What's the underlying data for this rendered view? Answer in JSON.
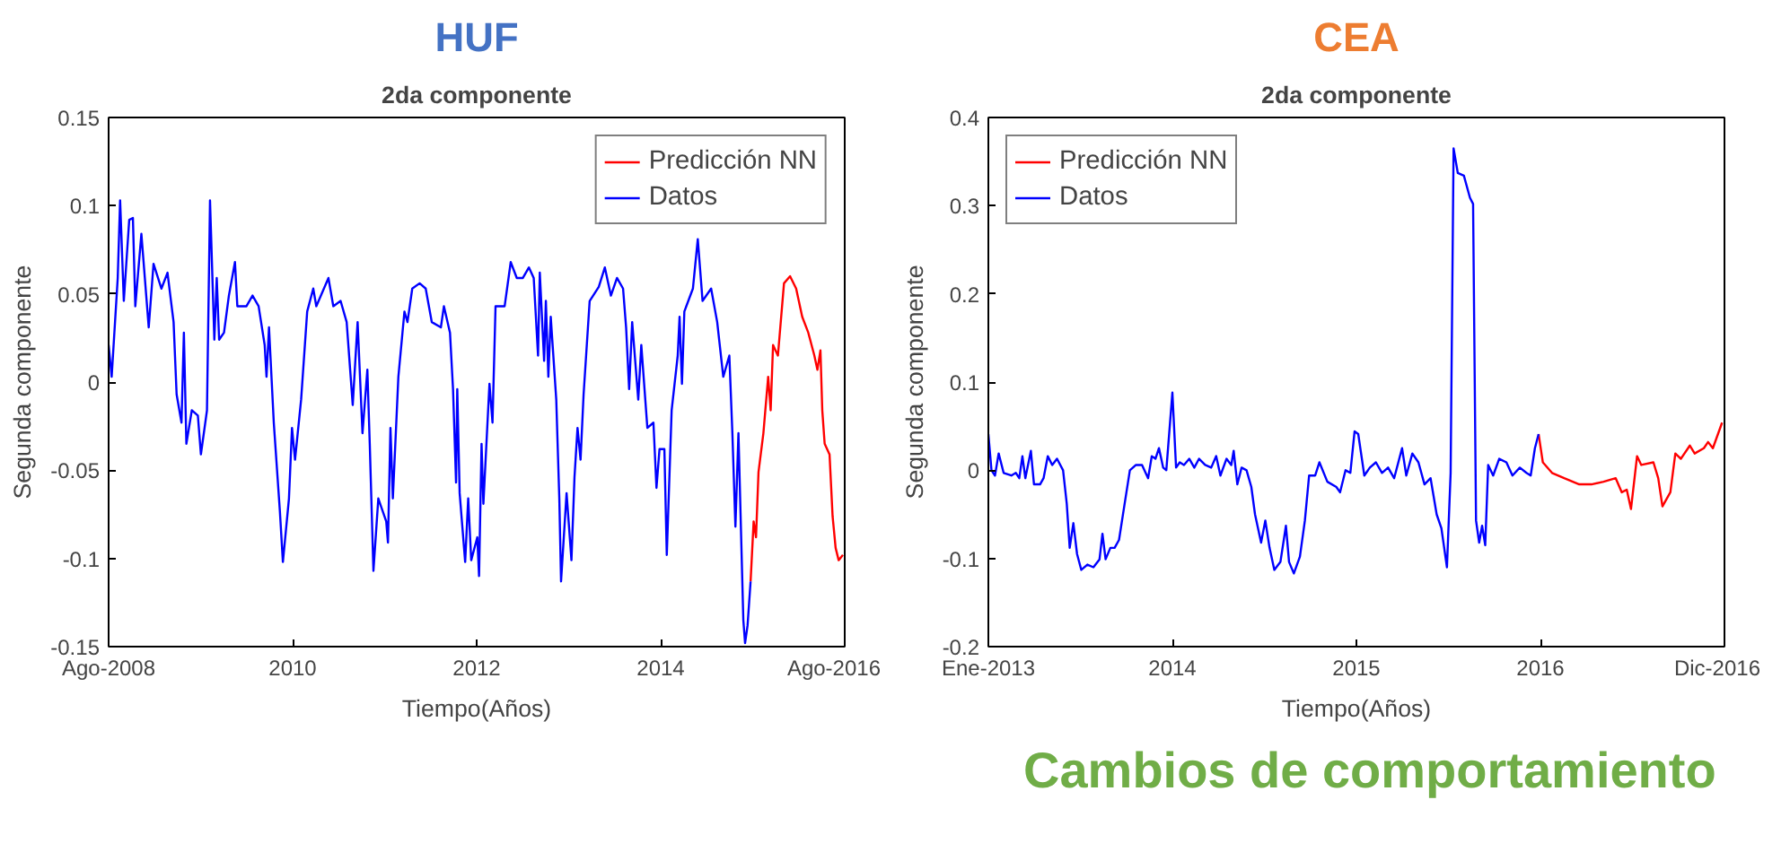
{
  "chart_data": [
    {
      "type": "line",
      "title": "2da componente",
      "xlabel": "Tiempo(Años)",
      "ylabel": "Segunda componente",
      "annotations": [
        "HUF"
      ],
      "xlim": [
        2008,
        2016
      ],
      "xticks": [
        {
          "value": 2008,
          "label": "Ago-2008"
        },
        2010,
        2012,
        2014,
        {
          "value": 2016,
          "label": "Ago-2016"
        }
      ],
      "ylim": [
        -0.15,
        0.15
      ],
      "yticks": [
        -0.15,
        -0.1,
        -0.05,
        0,
        0.05,
        0.1,
        0.15
      ],
      "grid": false,
      "legend": "top right",
      "series": [
        {
          "name": "Predicción NN",
          "color": "#ff0000",
          "x": [
            2014.977,
            2015.01,
            2015.036,
            2015.063,
            2015.116,
            2015.168,
            2015.195,
            2015.221,
            2015.274,
            2015.34,
            2015.406,
            2015.472,
            2015.538,
            2015.604,
            2015.67,
            2015.703,
            2015.736,
            2015.756,
            2015.782,
            2015.835,
            2015.868,
            2015.901,
            2015.934,
            2015.98
          ],
          "values": [
            -0.113,
            -0.079,
            -0.088,
            -0.051,
            -0.029,
            0.003,
            -0.016,
            0.021,
            0.015,
            0.056,
            0.06,
            0.053,
            0.037,
            0.028,
            0.015,
            0.007,
            0.018,
            -0.016,
            -0.035,
            -0.041,
            -0.076,
            -0.094,
            -0.101,
            -0.098
          ]
        },
        {
          "name": "Datos",
          "color": "#0000ff",
          "x": [
            2008.0,
            2008.033,
            2008.099,
            2008.125,
            2008.165,
            2008.224,
            2008.264,
            2008.29,
            2008.356,
            2008.436,
            2008.488,
            2008.574,
            2008.64,
            2008.706,
            2008.739,
            2008.792,
            2008.818,
            2008.845,
            2008.904,
            2008.97,
            2009.003,
            2009.069,
            2009.102,
            2009.149,
            2009.175,
            2009.201,
            2009.254,
            2009.307,
            2009.373,
            2009.399,
            2009.498,
            2009.564,
            2009.63,
            2009.696,
            2009.716,
            2009.743,
            2009.795,
            2009.861,
            2009.894,
            2009.96,
            2009.993,
            2010.026,
            2010.092,
            2010.158,
            2010.224,
            2010.257,
            2010.389,
            2010.442,
            2010.521,
            2010.587,
            2010.653,
            2010.706,
            2010.759,
            2010.812,
            2010.838,
            2010.878,
            2010.931,
            2011.017,
            2011.036,
            2011.063,
            2011.089,
            2011.149,
            2011.215,
            2011.248,
            2011.3,
            2011.38,
            2011.446,
            2011.512,
            2011.611,
            2011.644,
            2011.71,
            2011.743,
            2011.776,
            2011.789,
            2011.815,
            2011.875,
            2011.908,
            2011.941,
            2012.007,
            2012.026,
            2012.053,
            2012.073,
            2012.139,
            2012.172,
            2012.205,
            2012.304,
            2012.37,
            2012.436,
            2012.502,
            2012.568,
            2012.62,
            2012.667,
            2012.686,
            2012.733,
            2012.752,
            2012.779,
            2012.805,
            2012.865,
            2012.898,
            2012.917,
            2012.977,
            2013.03,
            2013.063,
            2013.096,
            2013.129,
            2013.162,
            2013.228,
            2013.327,
            2013.393,
            2013.459,
            2013.525,
            2013.591,
            2013.624,
            2013.657,
            2013.69,
            2013.756,
            2013.789,
            2013.855,
            2013.921,
            2013.954,
            2013.987,
            2014.04,
            2014.066,
            2014.119,
            2014.185,
            2014.205,
            2014.231,
            2014.257,
            2014.35,
            2014.403,
            2014.455,
            2014.548,
            2014.614,
            2014.68,
            2014.746,
            2014.779,
            2014.812,
            2014.845,
            2014.898,
            2014.917,
            2014.944,
            2014.977
          ],
          "values": [
            0.021,
            0.003,
            0.059,
            0.103,
            0.046,
            0.092,
            0.093,
            0.043,
            0.084,
            0.031,
            0.067,
            0.053,
            0.062,
            0.034,
            -0.007,
            -0.023,
            0.028,
            -0.035,
            -0.016,
            -0.019,
            -0.041,
            -0.016,
            0.103,
            0.024,
            0.059,
            0.024,
            0.028,
            0.049,
            0.068,
            0.043,
            0.043,
            0.049,
            0.043,
            0.021,
            0.003,
            0.031,
            -0.023,
            -0.073,
            -0.102,
            -0.066,
            -0.026,
            -0.044,
            -0.01,
            0.04,
            0.053,
            0.043,
            0.059,
            0.043,
            0.046,
            0.034,
            -0.013,
            0.034,
            -0.029,
            0.007,
            -0.035,
            -0.107,
            -0.066,
            -0.079,
            -0.091,
            -0.026,
            -0.066,
            0.003,
            0.04,
            0.034,
            0.053,
            0.056,
            0.053,
            0.034,
            0.031,
            0.043,
            0.028,
            -0.004,
            -0.057,
            -0.004,
            -0.063,
            -0.102,
            -0.066,
            -0.101,
            -0.088,
            -0.11,
            -0.035,
            -0.069,
            -0.001,
            -0.023,
            0.043,
            0.043,
            0.068,
            0.059,
            0.059,
            0.065,
            0.059,
            0.015,
            0.062,
            0.012,
            0.046,
            0.003,
            0.037,
            -0.01,
            -0.066,
            -0.113,
            -0.063,
            -0.101,
            -0.054,
            -0.026,
            -0.044,
            -0.007,
            0.046,
            0.054,
            0.065,
            0.049,
            0.059,
            0.053,
            0.031,
            -0.004,
            0.034,
            -0.01,
            0.021,
            -0.026,
            -0.023,
            -0.06,
            -0.038,
            -0.038,
            -0.098,
            -0.016,
            0.015,
            0.037,
            -0.001,
            0.04,
            0.053,
            0.081,
            0.046,
            0.053,
            0.034,
            0.003,
            0.015,
            -0.029,
            -0.082,
            -0.029,
            -0.135,
            -0.148,
            -0.138,
            -0.113
          ]
        }
      ]
    },
    {
      "type": "line",
      "title": "2da componente",
      "xlabel": "Tiempo(Años)",
      "ylabel": "Segunda componente",
      "annotations": [
        "CEA",
        "Cambios de comportamiento"
      ],
      "xlim": [
        2013,
        2017
      ],
      "xticks": [
        {
          "value": 2013,
          "label": "Ene-2013"
        },
        2014,
        2015,
        2016,
        {
          "value": 2017,
          "label": "Dic-2016"
        }
      ],
      "ylim": [
        -0.2,
        0.4
      ],
      "yticks": [
        -0.2,
        -0.1,
        0,
        0.1,
        0.2,
        0.3,
        0.4
      ],
      "grid": false,
      "legend": "top left",
      "series": [
        {
          "name": "Predicción NN",
          "color": "#ff0000",
          "x": [
            2015.99,
            2016.013,
            2016.063,
            2016.129,
            2016.211,
            2016.277,
            2016.343,
            2016.409,
            2016.442,
            2016.469,
            2016.492,
            2016.525,
            2016.548,
            2016.614,
            2016.64,
            2016.663,
            2016.706,
            2016.733,
            2016.763,
            2016.812,
            2016.838,
            2016.888,
            2016.911,
            2016.937,
            2016.987
          ],
          "values": [
            0.041,
            0.009,
            -0.003,
            -0.009,
            -0.016,
            -0.016,
            -0.013,
            -0.009,
            -0.025,
            -0.022,
            -0.044,
            0.016,
            0.006,
            0.009,
            -0.009,
            -0.041,
            -0.025,
            0.019,
            0.013,
            0.028,
            0.019,
            0.025,
            0.032,
            0.025,
            0.054
          ]
        },
        {
          "name": "Datos",
          "color": "#0000ff",
          "x": [
            2013.0,
            2013.017,
            2013.036,
            2013.056,
            2013.083,
            2013.125,
            2013.149,
            2013.168,
            2013.185,
            2013.201,
            2013.231,
            2013.248,
            2013.281,
            2013.3,
            2013.323,
            2013.347,
            2013.373,
            2013.406,
            2013.426,
            2013.442,
            2013.462,
            2013.482,
            2013.505,
            2013.538,
            2013.571,
            2013.604,
            2013.62,
            2013.637,
            2013.663,
            2013.686,
            2013.71,
            2013.736,
            2013.769,
            2013.802,
            2013.835,
            2013.868,
            2013.888,
            2013.908,
            2013.927,
            2013.95,
            2013.967,
            2014.0,
            2014.02,
            2014.04,
            2014.063,
            2014.092,
            2014.119,
            2014.145,
            2014.178,
            2014.211,
            2014.238,
            2014.261,
            2014.294,
            2014.32,
            2014.333,
            2014.353,
            2014.376,
            2014.403,
            2014.429,
            2014.449,
            2014.482,
            2014.505,
            2014.528,
            2014.554,
            2014.587,
            2014.617,
            2014.634,
            2014.66,
            2014.693,
            2014.72,
            2014.743,
            2014.776,
            2014.799,
            2014.842,
            2014.891,
            2014.911,
            2014.941,
            2014.967,
            2014.99,
            2015.01,
            2015.043,
            2015.073,
            2015.106,
            2015.139,
            2015.172,
            2015.205,
            2015.248,
            2015.271,
            2015.304,
            2015.337,
            2015.37,
            2015.403,
            2015.436,
            2015.462,
            2015.492,
            2015.512,
            2015.528,
            2015.551,
            2015.584,
            2015.617,
            2015.634,
            2015.65,
            2015.667,
            2015.683,
            2015.7,
            2015.716,
            2015.743,
            2015.776,
            2015.815,
            2015.848,
            2015.888,
            2015.924,
            2015.947,
            2015.97,
            2015.99
          ],
          "values": [
            0.041,
            0.0,
            -0.006,
            0.019,
            -0.003,
            -0.006,
            -0.003,
            -0.009,
            0.016,
            -0.009,
            0.022,
            -0.016,
            -0.016,
            -0.009,
            0.016,
            0.006,
            0.013,
            0.0,
            -0.038,
            -0.088,
            -0.06,
            -0.095,
            -0.113,
            -0.107,
            -0.11,
            -0.101,
            -0.072,
            -0.101,
            -0.088,
            -0.088,
            -0.079,
            -0.044,
            0.0,
            0.006,
            0.006,
            -0.009,
            0.016,
            0.013,
            0.025,
            0.003,
            0.0,
            0.088,
            0.003,
            0.009,
            0.006,
            0.013,
            0.003,
            0.013,
            0.006,
            0.003,
            0.016,
            -0.006,
            0.013,
            0.006,
            0.022,
            -0.016,
            0.003,
            0.0,
            -0.019,
            -0.05,
            -0.082,
            -0.057,
            -0.088,
            -0.113,
            -0.104,
            -0.063,
            -0.104,
            -0.117,
            -0.098,
            -0.057,
            -0.006,
            -0.006,
            0.009,
            -0.013,
            -0.019,
            -0.025,
            0.0,
            -0.003,
            0.044,
            0.041,
            -0.006,
            0.003,
            0.009,
            -0.003,
            0.003,
            -0.009,
            0.025,
            -0.006,
            0.019,
            0.009,
            -0.016,
            -0.009,
            -0.05,
            -0.066,
            -0.11,
            -0.003,
            0.365,
            0.337,
            0.334,
            0.309,
            0.302,
            -0.057,
            -0.082,
            -0.063,
            -0.085,
            0.006,
            -0.006,
            0.013,
            0.009,
            -0.006,
            0.003,
            -0.003,
            -0.006,
            0.025,
            0.041
          ]
        }
      ]
    }
  ]
}
